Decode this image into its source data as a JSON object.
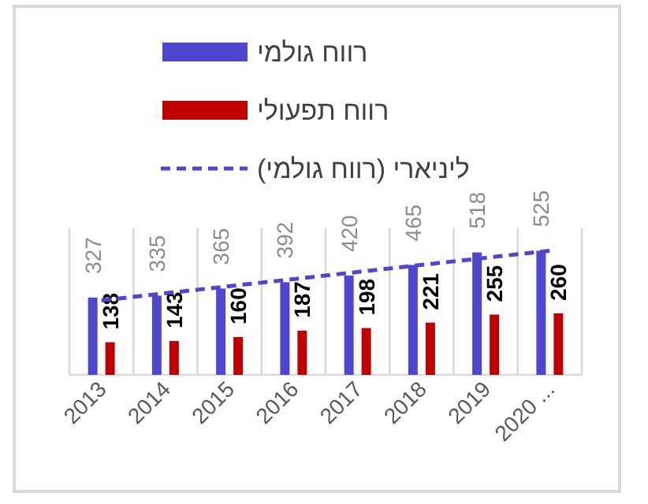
{
  "chart_data": {
    "type": "bar",
    "categories": [
      "2013",
      "2014",
      "2015",
      "2016",
      "2017",
      "2018",
      "2019",
      "2020 ..."
    ],
    "series": [
      {
        "name": "רווח גולמי",
        "color": "#4f46d0",
        "values": [
          327,
          335,
          365,
          392,
          420,
          465,
          518,
          525
        ],
        "value_labels": [
          "327",
          "335",
          "365",
          "392",
          "420",
          "465",
          "518",
          "525"
        ]
      },
      {
        "name": "רווח תפעולי",
        "color": "#c00000",
        "values": [
          138,
          143,
          160,
          187,
          198,
          221,
          255,
          260
        ],
        "value_labels": [
          "138",
          "143",
          "160",
          "187",
          "198",
          "221",
          "255",
          "260"
        ]
      },
      {
        "name": "ליניארי (רווח גולמי)",
        "type": "line",
        "line_style": "dashed",
        "marker": "none",
        "color": "#4f46d0",
        "values": [
          315,
          null,
          null,
          null,
          null,
          null,
          null,
          525
        ]
      }
    ],
    "grid": "x",
    "legend": "top"
  }
}
